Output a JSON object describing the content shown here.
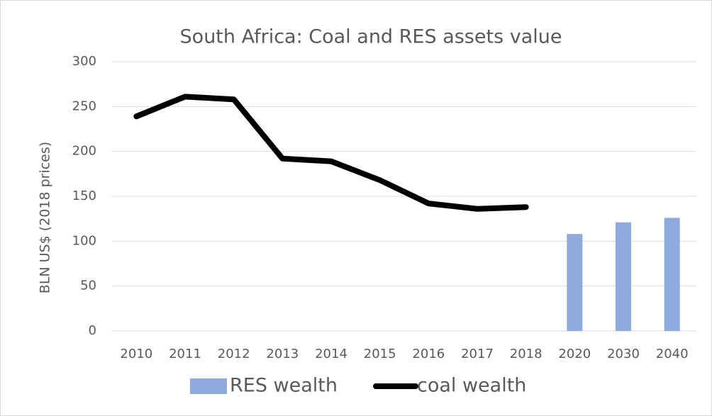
{
  "chart_data": {
    "type": "combo",
    "title": "South Africa: Coal and RES assets value",
    "y_label": "BLN US$ (2018 prices)",
    "categories": [
      "2010",
      "2011",
      "2012",
      "2013",
      "2014",
      "2015",
      "2016",
      "2017",
      "2018",
      "2020",
      "2030",
      "2040"
    ],
    "series": [
      {
        "name": "RES wealth",
        "type": "bar",
        "color": "#8faadc",
        "values": [
          null,
          null,
          null,
          null,
          null,
          null,
          null,
          null,
          null,
          108,
          121,
          126
        ]
      },
      {
        "name": "coal wealth",
        "type": "line",
        "color": "#000000",
        "values": [
          239,
          261,
          258,
          192,
          189,
          168,
          142,
          136,
          138,
          null,
          null,
          null
        ]
      }
    ],
    "ylim": [
      0,
      300
    ],
    "yticks": [
      0,
      50,
      100,
      150,
      200,
      250,
      300
    ],
    "grid": true,
    "legend": "bottom"
  }
}
